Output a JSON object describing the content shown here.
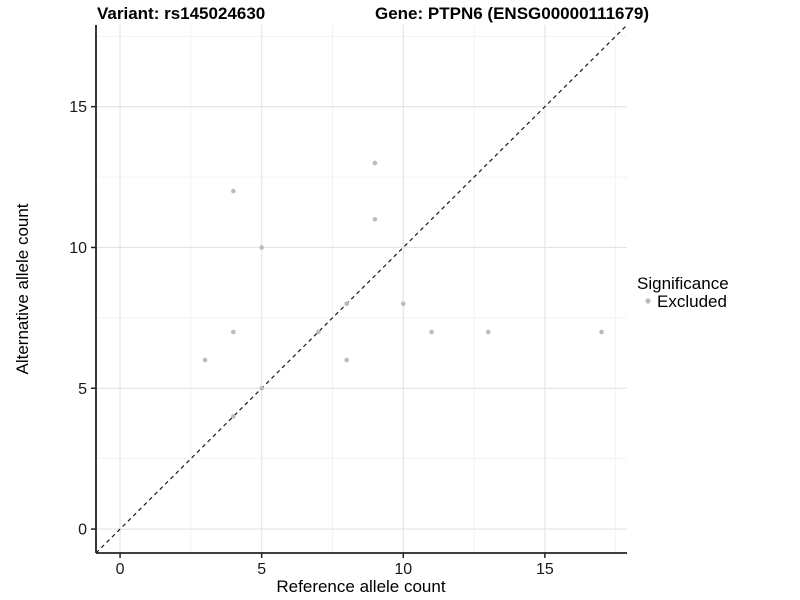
{
  "titles": {
    "variant": "Variant: rs145024630",
    "gene": "Gene: PTPN6 (ENSG00000111679)"
  },
  "chart_data": {
    "type": "scatter",
    "title_variant": "Variant: rs145024630",
    "title_gene": "Gene: PTPN6 (ENSG00000111679)",
    "xlabel": "Reference allele count",
    "ylabel": "Alternative allele count",
    "xlim": [
      -0.85,
      17.9
    ],
    "ylim": [
      -0.85,
      17.9
    ],
    "x_ticks": [
      0,
      5,
      10,
      15
    ],
    "y_ticks": [
      0,
      5,
      10,
      15
    ],
    "x_minor_ticks": [
      2.5,
      7.5,
      12.5,
      17.5
    ],
    "y_minor_ticks": [
      2.5,
      7.5,
      12.5,
      17.5
    ],
    "grid": "major and minor, light gray on white",
    "identity_line": {
      "type": "y=x",
      "style": "dashed",
      "color": "#1a1a1a"
    },
    "series": [
      {
        "name": "Excluded",
        "color": "#bcbcbc",
        "points": [
          [
            3,
            6
          ],
          [
            4,
            4
          ],
          [
            4,
            7
          ],
          [
            4,
            12
          ],
          [
            5,
            5
          ],
          [
            5,
            10
          ],
          [
            7,
            7
          ],
          [
            8,
            6
          ],
          [
            8,
            8
          ],
          [
            9,
            11
          ],
          [
            9,
            13
          ],
          [
            10,
            8
          ],
          [
            11,
            7
          ],
          [
            13,
            7
          ],
          [
            17,
            7
          ]
        ]
      }
    ],
    "legend": {
      "position": "right",
      "title": "Significance",
      "entries": [
        {
          "label": "Excluded",
          "color": "#bcbcbc"
        }
      ]
    }
  },
  "colors": {
    "background": "#ffffff",
    "grid_major": "#e3e3e3",
    "grid_minor": "#f1f1f1",
    "axis_line": "#222222",
    "tick_text": "#1a1a1a",
    "point": "#bcbcbc"
  }
}
